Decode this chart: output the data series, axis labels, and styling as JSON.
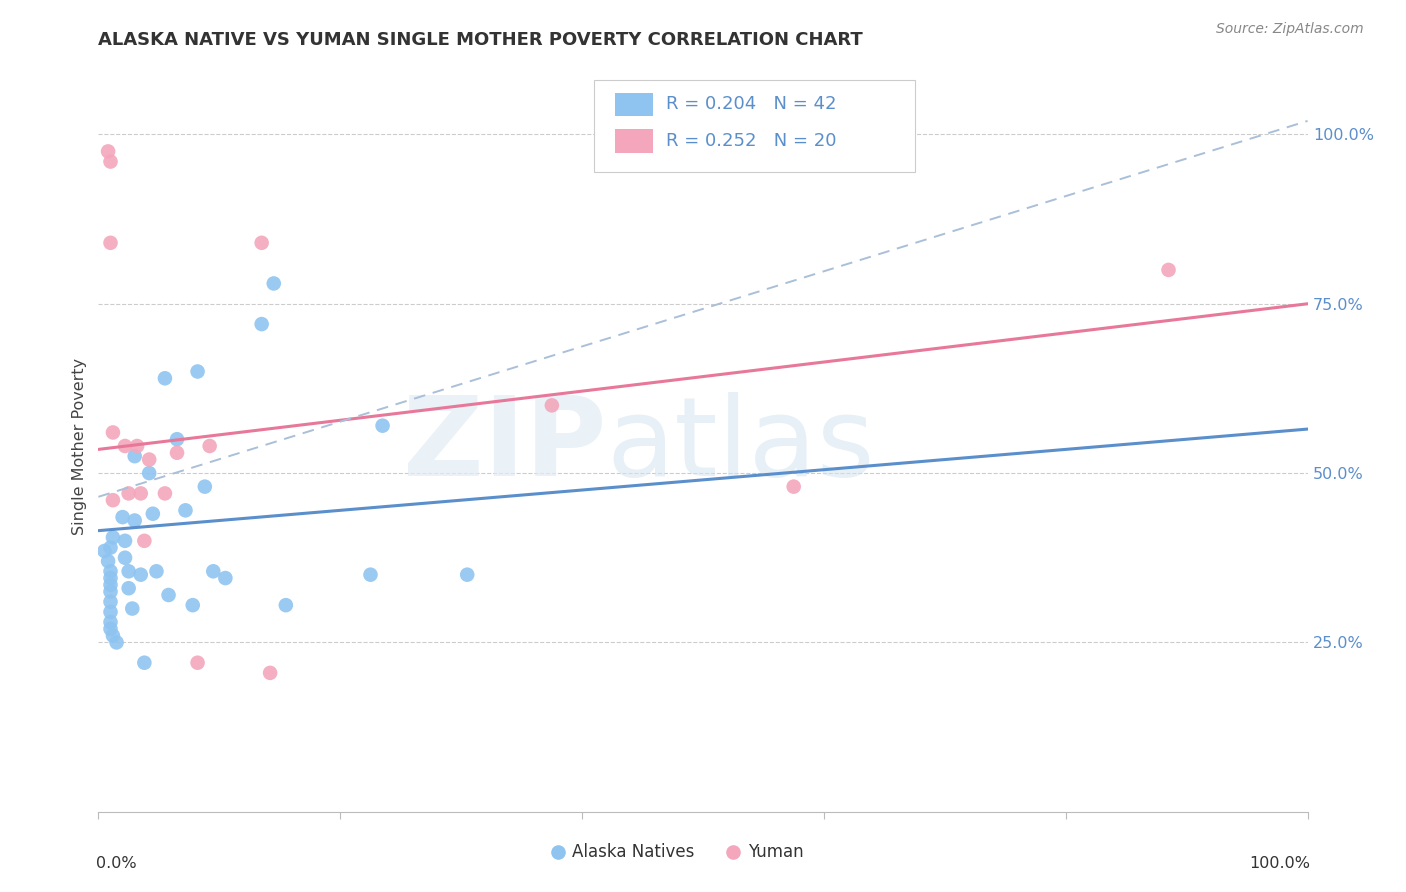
{
  "title": "ALASKA NATIVE VS YUMAN SINGLE MOTHER POVERTY CORRELATION CHART",
  "source": "Source: ZipAtlas.com",
  "ylabel": "Single Mother Poverty",
  "ytick_labels": [
    "25.0%",
    "50.0%",
    "75.0%",
    "100.0%"
  ],
  "ytick_values": [
    0.25,
    0.5,
    0.75,
    1.0
  ],
  "legend_label1": "Alaska Natives",
  "legend_label2": "Yuman",
  "legend_r1": "R = 0.204",
  "legend_n1": "N = 42",
  "legend_r2": "R = 0.252",
  "legend_n2": "N = 20",
  "color_blue": "#8FC4F0",
  "color_pink": "#F4A7BC",
  "color_blue_line": "#5B8FCC",
  "color_pink_line": "#E8789A",
  "color_dashed_line": "#AABFD8",
  "alaska_x": [
    0.005,
    0.008,
    0.01,
    0.012,
    0.01,
    0.01,
    0.01,
    0.01,
    0.01,
    0.01,
    0.01,
    0.01,
    0.012,
    0.015,
    0.02,
    0.022,
    0.022,
    0.025,
    0.025,
    0.028,
    0.03,
    0.03,
    0.035,
    0.038,
    0.042,
    0.045,
    0.048,
    0.055,
    0.058,
    0.065,
    0.072,
    0.078,
    0.082,
    0.088,
    0.095,
    0.105,
    0.135,
    0.145,
    0.155,
    0.225,
    0.235,
    0.305
  ],
  "alaska_y": [
    0.385,
    0.37,
    0.39,
    0.405,
    0.355,
    0.345,
    0.335,
    0.325,
    0.31,
    0.295,
    0.28,
    0.27,
    0.26,
    0.25,
    0.435,
    0.4,
    0.375,
    0.355,
    0.33,
    0.3,
    0.525,
    0.43,
    0.35,
    0.22,
    0.5,
    0.44,
    0.355,
    0.64,
    0.32,
    0.55,
    0.445,
    0.305,
    0.65,
    0.48,
    0.355,
    0.345,
    0.72,
    0.78,
    0.305,
    0.35,
    0.57,
    0.35
  ],
  "yuman_x": [
    0.008,
    0.01,
    0.01,
    0.012,
    0.012,
    0.022,
    0.025,
    0.032,
    0.035,
    0.038,
    0.042,
    0.055,
    0.065,
    0.082,
    0.092,
    0.135,
    0.142,
    0.375,
    0.575,
    0.885
  ],
  "yuman_y": [
    0.975,
    0.96,
    0.84,
    0.56,
    0.46,
    0.54,
    0.47,
    0.54,
    0.47,
    0.4,
    0.52,
    0.47,
    0.53,
    0.22,
    0.54,
    0.84,
    0.205,
    0.6,
    0.48,
    0.8
  ],
  "blue_line": [
    0.0,
    1.0,
    0.415,
    0.565
  ],
  "pink_line": [
    0.0,
    1.0,
    0.535,
    0.75
  ],
  "dashed_line": [
    0.0,
    1.0,
    0.465,
    1.02
  ],
  "xlim": [
    0.0,
    1.0
  ],
  "ylim": [
    0.0,
    1.08
  ]
}
